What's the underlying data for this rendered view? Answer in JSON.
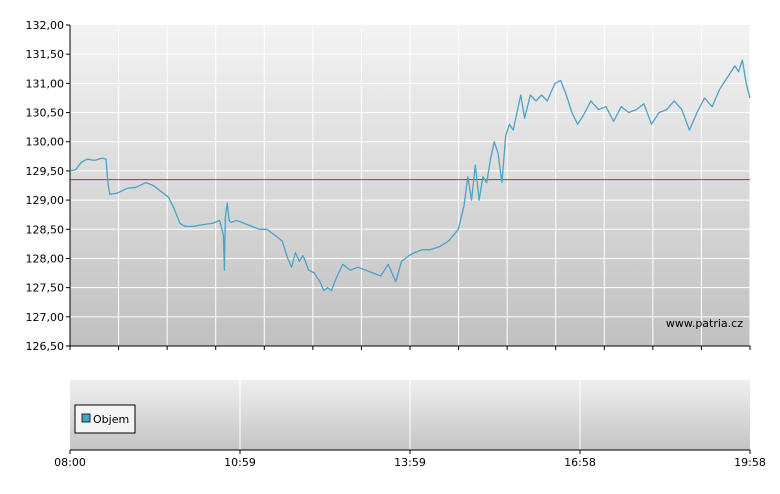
{
  "chart_data": [
    {
      "type": "line",
      "y_ticks": [
        "132,00",
        "131,50",
        "131,00",
        "130,50",
        "130,00",
        "129,50",
        "129,00",
        "128,50",
        "128,00",
        "127,50",
        "127,00",
        "126,50"
      ],
      "ylim": [
        126.5,
        132.0
      ],
      "xlim_minutes": [
        480,
        1198
      ],
      "x_ticks": [
        "08:00",
        "10:59",
        "13:59",
        "16:58",
        "19:58"
      ],
      "reference_line": 129.35,
      "watermark": "www.patria.cz",
      "grid": true,
      "colors": {
        "series": "#4aa3c8",
        "reference": "#d62020",
        "plot_top": "#f2f2f2",
        "plot_bottom": "#c2c2c2"
      },
      "series": [
        {
          "x": [
            "08:00",
            "08:06",
            "08:12",
            "08:18",
            "08:26",
            "08:34",
            "08:38",
            "08:40",
            "08:42",
            "08:50",
            "09:00",
            "09:10",
            "09:20",
            "09:28",
            "09:36",
            "09:44",
            "09:50",
            "09:56",
            "10:02",
            "10:10",
            "10:20",
            "10:30",
            "10:38",
            "10:42",
            "10:43",
            "10:44",
            "10:46",
            "10:48",
            "10:50",
            "10:56",
            "11:04",
            "11:12",
            "11:20",
            "11:28",
            "11:36",
            "11:44",
            "11:50",
            "11:54",
            "11:58",
            "12:02",
            "12:06",
            "12:12",
            "12:18",
            "12:24",
            "12:28",
            "12:32",
            "12:36",
            "12:42",
            "12:48",
            "12:56",
            "13:04",
            "13:12",
            "13:20",
            "13:28",
            "13:36",
            "13:44",
            "13:50",
            "13:54",
            "13:58",
            "14:04",
            "14:12",
            "14:20",
            "14:30",
            "14:40",
            "14:50",
            "14:56",
            "15:00",
            "15:04",
            "15:08",
            "15:12",
            "15:16",
            "15:20",
            "15:24",
            "15:28",
            "15:32",
            "15:36",
            "15:40",
            "15:44",
            "15:48",
            "15:52",
            "15:56",
            "16:00",
            "16:06",
            "16:12",
            "16:18",
            "16:24",
            "16:32",
            "16:38",
            "16:44",
            "16:50",
            "16:56",
            "17:02",
            "17:10",
            "17:18",
            "17:26",
            "17:34",
            "17:42",
            "17:50",
            "17:58",
            "18:06",
            "18:14",
            "18:22",
            "18:30",
            "18:38",
            "18:46",
            "18:54",
            "19:02",
            "19:10",
            "19:18",
            "19:26",
            "19:34",
            "19:42",
            "19:46",
            "19:50",
            "19:54",
            "19:58"
          ],
          "y": [
            129.5,
            129.52,
            129.65,
            129.7,
            129.68,
            129.72,
            129.7,
            129.3,
            129.1,
            129.12,
            129.2,
            129.22,
            129.3,
            129.25,
            129.15,
            129.05,
            128.85,
            128.6,
            128.55,
            128.55,
            128.58,
            128.6,
            128.65,
            128.4,
            127.8,
            128.7,
            128.95,
            128.65,
            128.62,
            128.65,
            128.6,
            128.55,
            128.5,
            128.5,
            128.4,
            128.3,
            128.0,
            127.85,
            128.1,
            127.95,
            128.05,
            127.8,
            127.75,
            127.6,
            127.45,
            127.5,
            127.45,
            127.7,
            127.9,
            127.8,
            127.85,
            127.8,
            127.75,
            127.7,
            127.9,
            127.6,
            127.95,
            128.0,
            128.05,
            128.1,
            128.15,
            128.15,
            128.2,
            128.3,
            128.5,
            128.9,
            129.4,
            129.0,
            129.6,
            129.0,
            129.4,
            129.3,
            129.7,
            130.0,
            129.8,
            129.3,
            130.1,
            130.3,
            130.2,
            130.5,
            130.8,
            130.4,
            130.8,
            130.7,
            130.8,
            130.7,
            131.0,
            131.05,
            130.8,
            130.5,
            130.3,
            130.45,
            130.7,
            130.55,
            130.6,
            130.35,
            130.6,
            130.5,
            130.55,
            130.65,
            130.3,
            130.5,
            130.55,
            130.7,
            130.55,
            130.2,
            130.5,
            130.75,
            130.6,
            130.9,
            131.1,
            131.3,
            131.2,
            131.4,
            131.0,
            130.75
          ]
        }
      ]
    },
    {
      "type": "bar",
      "legend": "Objem",
      "legend_color": "#4aa3c8",
      "x_ticks": [
        "08:00",
        "10:59",
        "13:59",
        "16:58",
        "19:58"
      ],
      "values": []
    }
  ]
}
